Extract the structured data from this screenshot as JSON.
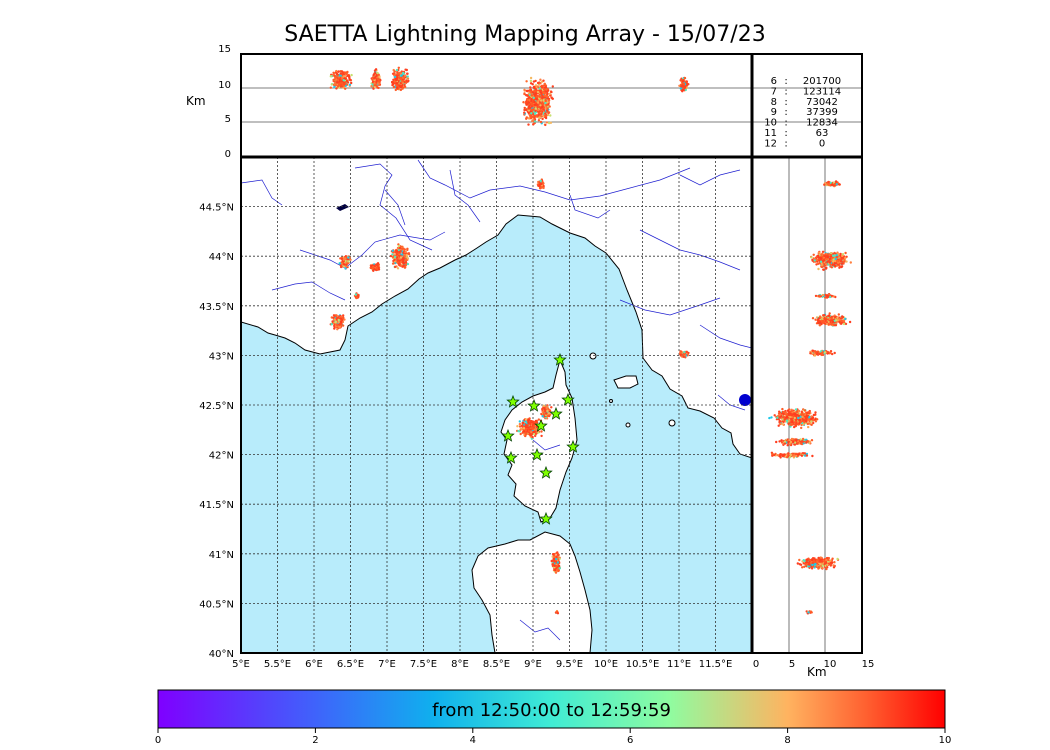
{
  "title": "SAETTA Lightning Mapping Array - 15/07/23",
  "altitude_panel": {
    "unit_label": "Km",
    "y_ticks": [
      "15",
      "10",
      "5",
      "0"
    ]
  },
  "side_panel": {
    "unit_label": "Km",
    "x_ticks": [
      "0",
      "5",
      "10",
      "15"
    ]
  },
  "map": {
    "lon_ticks": [
      "5°E",
      "5.5°E",
      "6°E",
      "6.5°E",
      "7°E",
      "7.5°E",
      "8°E",
      "8.5°E",
      "9°E",
      "9.5°E",
      "10°E",
      "10.5°E",
      "11°E",
      "11.5°E"
    ],
    "lat_ticks": [
      "44.5°N",
      "44°N",
      "43.5°N",
      "43°N",
      "42.5°N",
      "42°N",
      "41.5°N",
      "41°N",
      "40.5°N",
      "40°N"
    ],
    "sea_color": "#b8ecfb",
    "station_icon": "star-icon"
  },
  "station_counts": [
    {
      "stations": "6",
      "sep": ":",
      "count": "201700",
      "color": "#000000"
    },
    {
      "stations": "7",
      "sep": ":",
      "count": "123114",
      "color": "#ff0000"
    },
    {
      "stations": "8",
      "sep": ":",
      "count": "73042",
      "color": "#000000"
    },
    {
      "stations": "9",
      "sep": ":",
      "count": "37399",
      "color": "#000000"
    },
    {
      "stations": "10",
      "sep": ":",
      "count": "12834",
      "color": "#000000"
    },
    {
      "stations": "11",
      "sep": ":",
      "count": "63",
      "color": "#000000"
    },
    {
      "stations": "12",
      "sep": ":",
      "count": "0",
      "color": "#000000"
    }
  ],
  "colorbar": {
    "label": "from 12:50:00 to 12:59:59",
    "ticks": [
      "0",
      "2",
      "4",
      "6",
      "8",
      "10"
    ]
  }
}
